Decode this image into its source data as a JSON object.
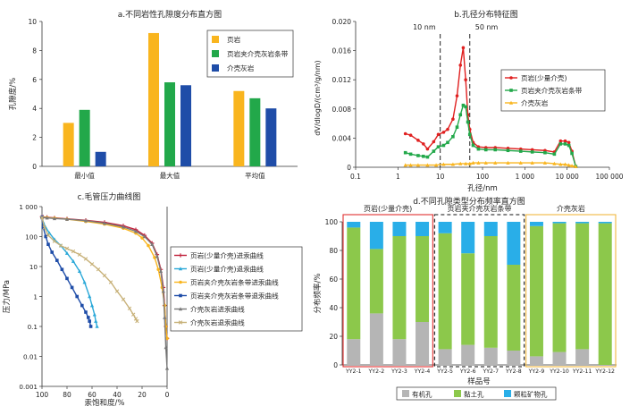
{
  "chart_data": [
    {
      "id": "a",
      "type": "bar",
      "title": "a.不同岩性孔隙度分布直方图",
      "ylabel": "孔隙度/%",
      "ylim": [
        0,
        10
      ],
      "yticks": [
        0,
        2,
        4,
        6,
        8,
        10
      ],
      "categories": [
        "最小值",
        "最大值",
        "平均值"
      ],
      "legend_position": "top-right",
      "series": [
        {
          "name": "页岩",
          "color": "#f9b51e",
          "values": [
            3.0,
            9.2,
            5.2
          ]
        },
        {
          "name": "页岩夹介壳灰岩条带",
          "color": "#22a84a",
          "values": [
            3.9,
            5.8,
            4.7
          ]
        },
        {
          "name": "介壳灰岩",
          "color": "#1f4da8",
          "values": [
            1.0,
            5.6,
            4.0
          ]
        }
      ]
    },
    {
      "id": "b",
      "type": "line",
      "title": "b.孔径分布特征图",
      "xlabel": "孔径/nm",
      "ylabel": "dV/dlogD/(cm³/g/nm)",
      "xscale": "log",
      "xlim": [
        0.1,
        100000
      ],
      "xticks": [
        0.1,
        1,
        10,
        100,
        1000,
        10000,
        100000
      ],
      "xtick_labels": [
        "0.1",
        "1",
        "10",
        "100",
        "1 000",
        "10 000",
        "100 000"
      ],
      "ylim": [
        0,
        0.02
      ],
      "yticks": [
        0,
        0.004,
        0.008,
        0.012,
        0.016,
        0.02
      ],
      "ytick_labels": [
        "0",
        "0.004",
        "0.008",
        "0.012",
        "0.016",
        "0.020"
      ],
      "legend_position": "top-right",
      "annotations": [
        {
          "text": "10 nm",
          "x": 10
        },
        {
          "text": "50 nm",
          "x": 50
        }
      ],
      "series": [
        {
          "name": "页岩(少量介壳)",
          "color": "#e02020",
          "marker": "circle",
          "x": [
            1.5,
            2,
            3,
            4,
            5,
            7,
            9,
            12,
            15,
            20,
            25,
            30,
            35,
            40,
            45,
            50,
            60,
            80,
            120,
            200,
            400,
            800,
            1500,
            3000,
            5000,
            7000,
            9000,
            11000,
            13000,
            16000
          ],
          "y": [
            0.0046,
            0.0044,
            0.0037,
            0.0032,
            0.0025,
            0.0035,
            0.0045,
            0.0048,
            0.0052,
            0.0066,
            0.0098,
            0.014,
            0.0164,
            0.012,
            0.0072,
            0.0052,
            0.0034,
            0.0028,
            0.0027,
            0.0027,
            0.0026,
            0.0025,
            0.0024,
            0.0023,
            0.0021,
            0.0036,
            0.0036,
            0.0034,
            0.0022,
            0.0001
          ]
        },
        {
          "name": "页岩夹介壳灰岩条带",
          "color": "#22a84a",
          "marker": "square",
          "x": [
            1.5,
            2,
            3,
            4,
            5,
            7,
            9,
            12,
            15,
            20,
            25,
            30,
            35,
            40,
            45,
            50,
            60,
            80,
            120,
            200,
            400,
            800,
            1500,
            3000,
            5000,
            7000,
            9000,
            11000,
            13000,
            16000
          ],
          "y": [
            0.002,
            0.0018,
            0.0016,
            0.0015,
            0.0014,
            0.0022,
            0.0028,
            0.003,
            0.0034,
            0.0042,
            0.0055,
            0.0072,
            0.0085,
            0.0083,
            0.0062,
            0.0045,
            0.003,
            0.0025,
            0.0024,
            0.0024,
            0.0023,
            0.0022,
            0.0021,
            0.002,
            0.0018,
            0.0032,
            0.0032,
            0.003,
            0.0019,
            0.0001
          ]
        },
        {
          "name": "介壳灰岩",
          "color": "#f9b51e",
          "marker": "triangle",
          "x": [
            1.5,
            2,
            3,
            5,
            8,
            12,
            20,
            30,
            40,
            50,
            60,
            80,
            120,
            200,
            400,
            800,
            1500,
            3000,
            5000,
            7000,
            9000,
            11000,
            13000,
            16000
          ],
          "y": [
            0.0003,
            0.0003,
            0.0003,
            0.0003,
            0.0003,
            0.0004,
            0.0004,
            0.0005,
            0.0005,
            0.0005,
            0.0006,
            0.0006,
            0.0006,
            0.0006,
            0.0006,
            0.0006,
            0.0006,
            0.0006,
            0.0005,
            0.0004,
            0.0004,
            0.0003,
            0.0002,
            0.0001
          ]
        }
      ]
    },
    {
      "id": "c",
      "type": "line",
      "title": "c.毛管压力曲线图",
      "xlabel": "汞饱和度/%",
      "ylabel": "压力/MPa",
      "xlim": [
        100,
        0
      ],
      "xticks": [
        100,
        80,
        60,
        40,
        20,
        0
      ],
      "yscale": "log",
      "ylim": [
        0.001,
        1000
      ],
      "yticks": [
        0.001,
        0.01,
        0.1,
        1,
        10,
        100,
        1000
      ],
      "ytick_labels": [
        "0.001",
        "0.01",
        "0.1",
        "1",
        "10",
        "100",
        "1 000"
      ],
      "legend_position": "right",
      "series": [
        {
          "name": "页岩(少量介壳)进汞曲线",
          "color": "#c0203a",
          "marker": "plus",
          "x": [
            0,
            1,
            2,
            3,
            5,
            8,
            12,
            18,
            25,
            35,
            50,
            65,
            80,
            90,
            96,
            99,
            100
          ],
          "y": [
            0.04,
            0.1,
            0.5,
            2,
            8,
            25,
            60,
            110,
            170,
            230,
            300,
            350,
            390,
            420,
            440,
            450,
            460
          ]
        },
        {
          "name": "页岩(少量介壳)退汞曲线",
          "color": "#2aa8d8",
          "marker": "triangle",
          "x": [
            100,
            99,
            97,
            94,
            90,
            85,
            80,
            75,
            70,
            66,
            62,
            60,
            58,
            57,
            56
          ],
          "y": [
            460,
            300,
            200,
            130,
            80,
            50,
            28,
            15,
            7,
            3,
            1,
            0.5,
            0.25,
            0.15,
            0.1
          ]
        },
        {
          "name": "页岩夹介壳灰岩条带进汞曲线",
          "color": "#f9b51e",
          "marker": "circle",
          "x": [
            0,
            1,
            2,
            4,
            7,
            10,
            15,
            20,
            25,
            35,
            50,
            65,
            80,
            90,
            96,
            100
          ],
          "y": [
            0.04,
            0.1,
            0.5,
            2,
            8,
            20,
            50,
            90,
            130,
            190,
            260,
            320,
            380,
            410,
            430,
            450
          ]
        },
        {
          "name": "页岩夹介壳灰岩条带退汞曲线",
          "color": "#1f4da8",
          "marker": "square",
          "x": [
            100,
            99,
            97,
            95,
            92,
            88,
            84,
            80,
            76,
            72,
            68,
            65,
            63,
            62,
            61
          ],
          "y": [
            450,
            200,
            100,
            55,
            30,
            16,
            8,
            4,
            2,
            1,
            0.5,
            0.3,
            0.2,
            0.15,
            0.1
          ]
        },
        {
          "name": "介壳灰岩进汞曲线",
          "color": "#7a7a7a",
          "marker": "triangle",
          "x": [
            0,
            1,
            2,
            3,
            5,
            8,
            12,
            18,
            25,
            35,
            50,
            65,
            80,
            90,
            96,
            100
          ],
          "y": [
            0.004,
            0.02,
            0.2,
            1.5,
            7,
            22,
            55,
            100,
            150,
            210,
            280,
            340,
            380,
            400,
            420,
            430
          ]
        },
        {
          "name": "介壳灰岩退汞曲线",
          "color": "#c8b27a",
          "marker": "x",
          "x": [
            100,
            98,
            95,
            90,
            85,
            80,
            75,
            70,
            65,
            60,
            55,
            50,
            45,
            40,
            35,
            30,
            27,
            25,
            24
          ],
          "y": [
            430,
            200,
            110,
            70,
            50,
            40,
            32,
            25,
            18,
            12,
            8,
            5,
            3,
            1.5,
            0.8,
            0.4,
            0.25,
            0.18,
            0.15
          ]
        }
      ]
    },
    {
      "id": "d",
      "type": "bar",
      "stacked": true,
      "title": "d.不同孔隙类型分布频率直方图",
      "xlabel": "样品号",
      "ylabel": "分布频率/%",
      "ylim": [
        0,
        100
      ],
      "yticks": [
        0,
        20,
        40,
        60,
        80,
        100
      ],
      "categories": [
        "YY2-1",
        "YY2-2",
        "YY2-3",
        "YY2-4",
        "YY2-5",
        "YY2-6",
        "YY2-7",
        "YY2-8",
        "YY2-9",
        "YY2-10",
        "YY2-11",
        "YY2-12"
      ],
      "groups": [
        {
          "label": "页岩(少量介壳)",
          "color": "#e03030",
          "style": "solid",
          "first": 0,
          "last": 3
        },
        {
          "label": "页岩夹介壳灰岩条带",
          "color": "#111111",
          "style": "dashed",
          "first": 4,
          "last": 7
        },
        {
          "label": "介壳灰岩",
          "color": "#f0b840",
          "style": "solid",
          "first": 8,
          "last": 11
        }
      ],
      "legend_position": "bottom",
      "series": [
        {
          "name": "有机孔",
          "color": "#b5b5b5",
          "values": [
            18,
            36,
            18,
            30,
            11,
            14,
            12,
            10,
            6,
            9,
            11,
            0
          ]
        },
        {
          "name": "黏土孔",
          "color": "#8cc84b",
          "values": [
            78,
            45,
            72,
            60,
            81,
            64,
            78,
            60,
            91,
            90,
            88,
            99
          ]
        },
        {
          "name": "颗粒矿物孔",
          "color": "#29aee8",
          "values": [
            4,
            19,
            10,
            10,
            8,
            22,
            10,
            30,
            3,
            1,
            1,
            1
          ]
        }
      ]
    }
  ]
}
